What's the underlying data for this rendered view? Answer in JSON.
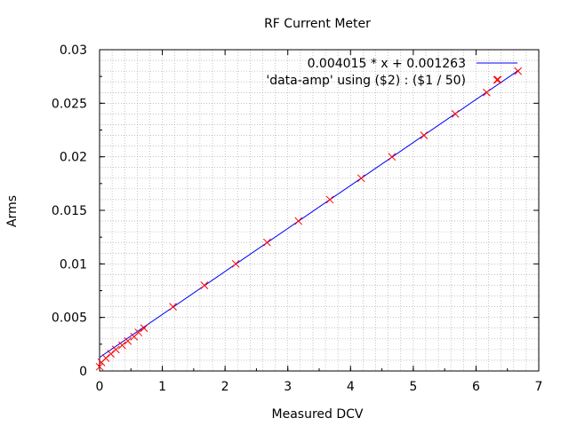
{
  "chart_data": {
    "type": "scatter",
    "title": "RF Current Meter",
    "xlabel": "Measured DCV",
    "ylabel": "Arms",
    "xlim": [
      0,
      7
    ],
    "ylim": [
      0,
      0.03
    ],
    "x_ticks": [
      "0",
      "1",
      "2",
      "3",
      "4",
      "5",
      "6",
      "7"
    ],
    "y_ticks": [
      "0",
      "0.005",
      "0.01",
      "0.015",
      "0.02",
      "0.025",
      "0.03"
    ],
    "grid": true,
    "legend_position": "top-right",
    "series": [
      {
        "name": "0.004015 * x + 0.001263",
        "kind": "line",
        "color": "#0000ff",
        "slope": 0.004015,
        "intercept": 0.001263,
        "x": [
          0,
          6.7
        ]
      },
      {
        "name": "'data-amp' using ($2) : ($1 / 50)",
        "kind": "points",
        "color": "#ff0000",
        "marker": "x",
        "x": [
          0.0,
          0.03,
          0.1,
          0.18,
          0.26,
          0.36,
          0.45,
          0.55,
          0.62,
          0.71,
          1.17,
          1.67,
          2.17,
          2.67,
          3.17,
          3.67,
          4.17,
          4.66,
          5.17,
          5.67,
          6.17,
          6.35,
          6.67
        ],
        "y": [
          0.0004,
          0.0008,
          0.0012,
          0.0016,
          0.002,
          0.0024,
          0.0028,
          0.0032,
          0.0036,
          0.004,
          0.006,
          0.008,
          0.01,
          0.012,
          0.014,
          0.016,
          0.018,
          0.02,
          0.022,
          0.024,
          0.026,
          0.0272,
          0.028
        ]
      }
    ]
  }
}
